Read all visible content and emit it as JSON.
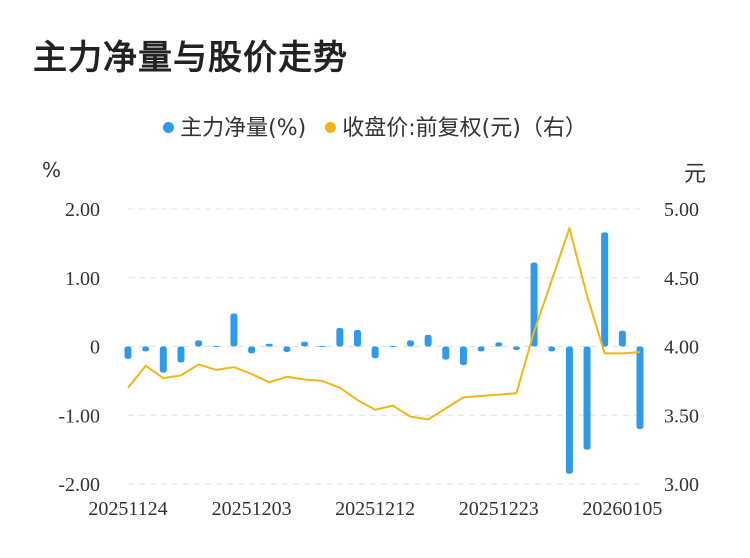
{
  "title": "主力净量与股价走势",
  "colors": {
    "bar": "#2f9be8",
    "line": "#f2b617",
    "grid": "#e0e0e0",
    "text": "#333333"
  },
  "chart_data": {
    "type": "bar",
    "legend": [
      {
        "name": "主力净量(%)",
        "color": "#2f9be8",
        "marker": "dot"
      },
      {
        "name": "收盘价:前复权(元)（右）",
        "color": "#f2b617",
        "marker": "dot"
      }
    ],
    "legend_position": "top-center",
    "y_left": {
      "unit": "%",
      "min": -2.0,
      "max": 2.0,
      "ticks": [
        2.0,
        1.0,
        0,
        -1.0,
        -2.0
      ],
      "tick_labels": [
        "2.00",
        "1.00",
        "0",
        "-1.00",
        "-2.00"
      ]
    },
    "y_right": {
      "unit": "元",
      "min": 3.0,
      "max": 5.0,
      "ticks": [
        5.0,
        4.5,
        4.0,
        3.5,
        3.0
      ],
      "tick_labels": [
        "5.00",
        "4.50",
        "4.00",
        "3.50",
        "3.00"
      ]
    },
    "x_tick_labels": [
      "20251124",
      "20251203",
      "20251212",
      "20251223",
      "20260105"
    ],
    "x_tick_index": [
      0,
      7,
      14,
      21,
      28
    ],
    "grid": "horizontal-dashed",
    "series": [
      {
        "name": "主力净量(%)",
        "type": "bar",
        "axis": "left",
        "values": [
          -0.18,
          -0.07,
          -0.38,
          -0.23,
          0.09,
          0.01,
          0.48,
          -0.1,
          0.04,
          -0.08,
          0.07,
          0.01,
          0.27,
          0.24,
          -0.17,
          0.01,
          0.09,
          0.17,
          -0.19,
          -0.27,
          -0.07,
          0.06,
          -0.05,
          1.22,
          -0.07,
          -1.85,
          -1.5,
          1.66,
          0.23,
          -1.2
        ]
      },
      {
        "name": "收盘价:前复权(元)（右）",
        "type": "line",
        "axis": "right",
        "values": [
          3.7,
          3.86,
          3.77,
          3.79,
          3.87,
          3.83,
          3.85,
          3.8,
          3.74,
          3.78,
          3.76,
          3.75,
          3.7,
          3.61,
          3.54,
          3.57,
          3.49,
          3.47,
          3.55,
          3.63,
          3.64,
          3.65,
          3.66,
          4.11,
          4.48,
          4.86,
          4.37,
          3.95,
          3.95,
          3.96
        ]
      }
    ]
  }
}
